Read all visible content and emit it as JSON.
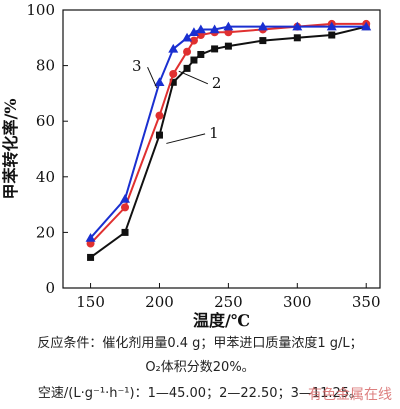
{
  "chart_data": {
    "type": "line",
    "xlabel": "温度/℃",
    "ylabel": "甲苯转化率/%",
    "xlim": [
      130,
      360
    ],
    "ylim": [
      0,
      100
    ],
    "xticks": [
      150,
      200,
      250,
      300,
      350
    ],
    "yticks": [
      0,
      20,
      40,
      60,
      80,
      100
    ],
    "grid": false,
    "series": [
      {
        "name": "1",
        "color": "#111111",
        "marker": "square",
        "x": [
          150,
          175,
          200,
          210,
          220,
          225,
          230,
          240,
          250,
          275,
          300,
          325,
          350
        ],
        "y": [
          11,
          20,
          55,
          74,
          79,
          82,
          84,
          86,
          87,
          89,
          90,
          91,
          94
        ]
      },
      {
        "name": "2",
        "color": "#e03030",
        "marker": "circle",
        "x": [
          150,
          175,
          200,
          210,
          220,
          225,
          230,
          240,
          250,
          275,
          300,
          325,
          350
        ],
        "y": [
          16,
          29,
          62,
          77,
          85,
          89,
          91,
          92,
          92,
          93,
          94,
          95,
          95
        ]
      },
      {
        "name": "3",
        "color": "#1a2fd0",
        "marker": "triangle",
        "x": [
          150,
          175,
          200,
          210,
          220,
          225,
          230,
          240,
          250,
          275,
          300,
          325,
          350
        ],
        "y": [
          18,
          32,
          74,
          86,
          90,
          92,
          93,
          93,
          94,
          94,
          94,
          94,
          94
        ]
      }
    ],
    "annotations": [
      {
        "text": "3",
        "x": 187,
        "y": 78,
        "target_x": 198,
        "target_y": 72
      },
      {
        "text": "2",
        "x": 238,
        "y": 72,
        "target_x": 214,
        "target_y": 78
      },
      {
        "text": "1",
        "x": 236,
        "y": 54,
        "target_x": 205,
        "target_y": 52
      }
    ]
  },
  "caption": {
    "line1": "反应条件：催化剂用量0.4 g；甲苯进口质量浓度1 g/L；",
    "line2": "O₂体积分数20%。",
    "line3": "空速/(L·g⁻¹·h⁻¹)：1—45.00；2—22.50；3—11.25。"
  },
  "watermark": "有色金属在线"
}
